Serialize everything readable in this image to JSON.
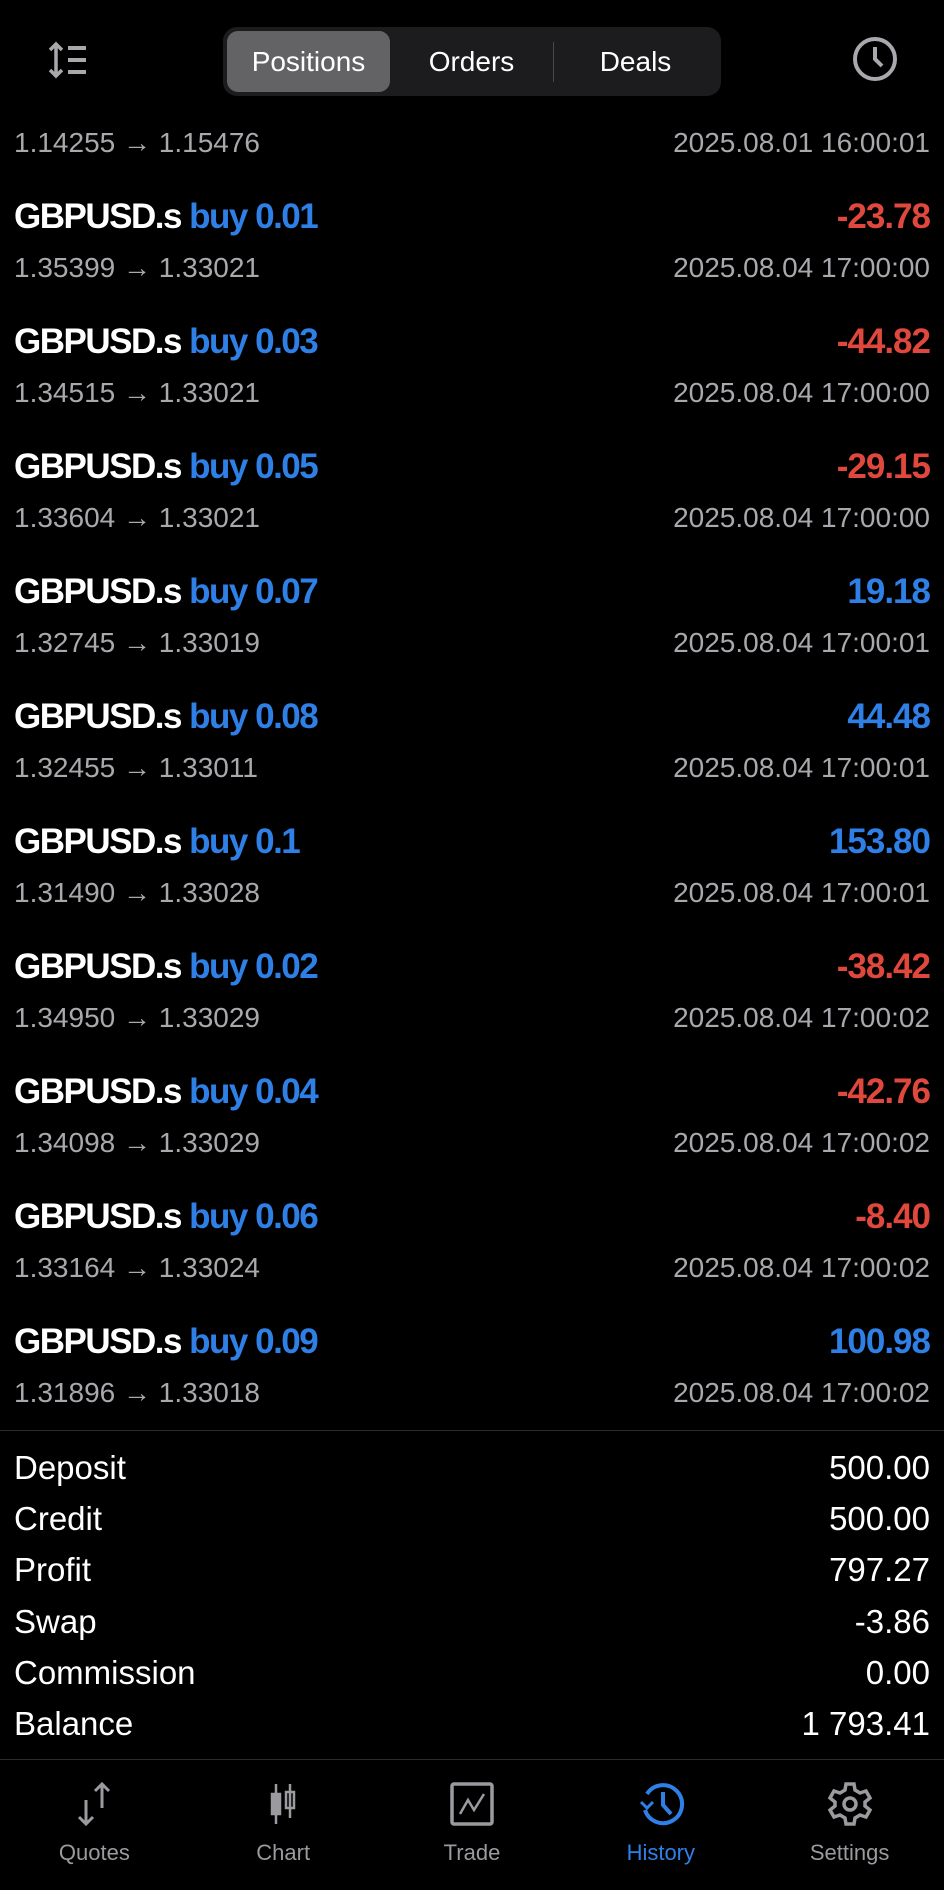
{
  "header": {
    "tabs": [
      {
        "label": "Positions",
        "active": true
      },
      {
        "label": "Orders",
        "active": false
      },
      {
        "label": "Deals",
        "active": false
      }
    ],
    "left_icon": "sort-icon",
    "right_icon": "clock-icon"
  },
  "colors": {
    "profit_positive": "#2f80e6",
    "profit_negative": "#e0483e",
    "accent": "#2f80e6"
  },
  "partial_row": {
    "prices": "1.14255 → 1.15476",
    "time": "2025.08.01 16:00:01"
  },
  "positions": [
    {
      "symbol": "GBPUSD.s",
      "direction": "buy 0.01",
      "profit": "-23.78",
      "prices": "1.35399 → 1.33021",
      "time": "2025.08.04 17:00:00"
    },
    {
      "symbol": "GBPUSD.s",
      "direction": "buy 0.03",
      "profit": "-44.82",
      "prices": "1.34515 → 1.33021",
      "time": "2025.08.04 17:00:00"
    },
    {
      "symbol": "GBPUSD.s",
      "direction": "buy 0.05",
      "profit": "-29.15",
      "prices": "1.33604 → 1.33021",
      "time": "2025.08.04 17:00:00"
    },
    {
      "symbol": "GBPUSD.s",
      "direction": "buy 0.07",
      "profit": "19.18",
      "prices": "1.32745 → 1.33019",
      "time": "2025.08.04 17:00:01"
    },
    {
      "symbol": "GBPUSD.s",
      "direction": "buy 0.08",
      "profit": "44.48",
      "prices": "1.32455 → 1.33011",
      "time": "2025.08.04 17:00:01"
    },
    {
      "symbol": "GBPUSD.s",
      "direction": "buy 0.1",
      "profit": "153.80",
      "prices": "1.31490 → 1.33028",
      "time": "2025.08.04 17:00:01"
    },
    {
      "symbol": "GBPUSD.s",
      "direction": "buy 0.02",
      "profit": "-38.42",
      "prices": "1.34950 → 1.33029",
      "time": "2025.08.04 17:00:02"
    },
    {
      "symbol": "GBPUSD.s",
      "direction": "buy 0.04",
      "profit": "-42.76",
      "prices": "1.34098 → 1.33029",
      "time": "2025.08.04 17:00:02"
    },
    {
      "symbol": "GBPUSD.s",
      "direction": "buy 0.06",
      "profit": "-8.40",
      "prices": "1.33164 → 1.33024",
      "time": "2025.08.04 17:00:02"
    },
    {
      "symbol": "GBPUSD.s",
      "direction": "buy 0.09",
      "profit": "100.98",
      "prices": "1.31896 → 1.33018",
      "time": "2025.08.04 17:00:02"
    }
  ],
  "summary": [
    {
      "label": "Deposit",
      "value": "500.00"
    },
    {
      "label": "Credit",
      "value": "500.00"
    },
    {
      "label": "Profit",
      "value": "797.27"
    },
    {
      "label": "Swap",
      "value": "-3.86"
    },
    {
      "label": "Commission",
      "value": "0.00"
    },
    {
      "label": "Balance",
      "value": "1 793.41"
    }
  ],
  "nav": [
    {
      "label": "Quotes",
      "icon": "quotes-icon",
      "active": false
    },
    {
      "label": "Chart",
      "icon": "chart-icon",
      "active": false
    },
    {
      "label": "Trade",
      "icon": "trade-icon",
      "active": false
    },
    {
      "label": "History",
      "icon": "history-icon",
      "active": true
    },
    {
      "label": "Settings",
      "icon": "settings-icon",
      "active": false
    }
  ]
}
